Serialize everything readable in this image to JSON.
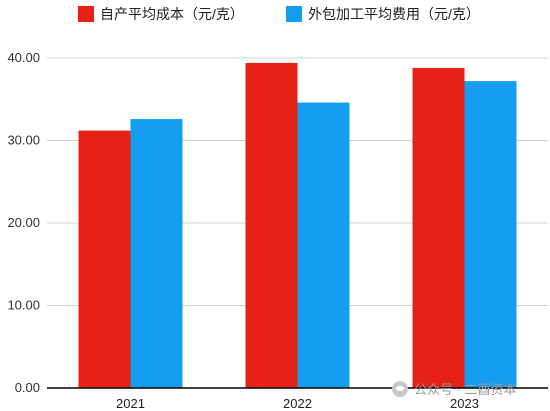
{
  "chart_data": {
    "type": "bar",
    "categories": [
      "2021",
      "2022",
      "2023"
    ],
    "series": [
      {
        "name": "自产平均成本（元/克）",
        "color": "#e52215",
        "values": [
          31.2,
          39.4,
          38.8
        ]
      },
      {
        "name": "外包加工平均费用（元/克）",
        "color": "#159ef0",
        "values": [
          32.6,
          34.6,
          37.2
        ]
      }
    ],
    "y_ticks": [
      "0.00",
      "10.00",
      "20.00",
      "30.00",
      "40.00"
    ],
    "ylim": [
      0,
      40
    ],
    "grid": true,
    "legend_position": "top",
    "title": "",
    "xlabel": "",
    "ylabel": ""
  },
  "watermark": {
    "label": "公众号 · 二酉资本",
    "icon": "wechat-icon"
  }
}
